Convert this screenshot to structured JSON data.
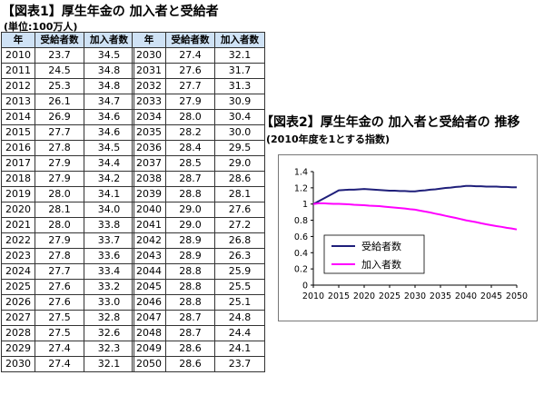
{
  "table_section": {
    "title": "【図表1】厚生年金の 加入者と受給者",
    "unit": "(単位:100万人)",
    "headers": [
      "年",
      "受給者数",
      "加入者数"
    ],
    "rows_left": [
      [
        "2010",
        "23.7",
        "34.5"
      ],
      [
        "2011",
        "24.5",
        "34.8"
      ],
      [
        "2012",
        "25.3",
        "34.8"
      ],
      [
        "2013",
        "26.1",
        "34.7"
      ],
      [
        "2014",
        "26.9",
        "34.6"
      ],
      [
        "2015",
        "27.7",
        "34.6"
      ],
      [
        "2016",
        "27.8",
        "34.5"
      ],
      [
        "2017",
        "27.9",
        "34.4"
      ],
      [
        "2018",
        "27.9",
        "34.2"
      ],
      [
        "2019",
        "28.0",
        "34.1"
      ],
      [
        "2020",
        "28.1",
        "34.0"
      ],
      [
        "2021",
        "28.0",
        "33.8"
      ],
      [
        "2022",
        "27.9",
        "33.7"
      ],
      [
        "2023",
        "27.8",
        "33.6"
      ],
      [
        "2024",
        "27.7",
        "33.4"
      ],
      [
        "2025",
        "27.6",
        "33.2"
      ],
      [
        "2026",
        "27.6",
        "33.0"
      ],
      [
        "2027",
        "27.5",
        "32.8"
      ],
      [
        "2028",
        "27.5",
        "32.6"
      ],
      [
        "2029",
        "27.4",
        "32.3"
      ],
      [
        "2030",
        "27.4",
        "32.1"
      ]
    ],
    "rows_right": [
      [
        "2030",
        "27.4",
        "32.1"
      ],
      [
        "2031",
        "27.6",
        "31.7"
      ],
      [
        "2032",
        "27.7",
        "31.3"
      ],
      [
        "2033",
        "27.9",
        "30.9"
      ],
      [
        "2034",
        "28.0",
        "30.4"
      ],
      [
        "2035",
        "28.2",
        "30.0"
      ],
      [
        "2036",
        "28.4",
        "29.5"
      ],
      [
        "2037",
        "28.5",
        "29.0"
      ],
      [
        "2038",
        "28.7",
        "28.6"
      ],
      [
        "2039",
        "28.8",
        "28.1"
      ],
      [
        "2040",
        "29.0",
        "27.6"
      ],
      [
        "2041",
        "29.0",
        "27.2"
      ],
      [
        "2042",
        "28.9",
        "26.8"
      ],
      [
        "2043",
        "28.9",
        "26.3"
      ],
      [
        "2044",
        "28.8",
        "25.9"
      ],
      [
        "2045",
        "28.8",
        "25.5"
      ],
      [
        "2046",
        "28.8",
        "25.1"
      ],
      [
        "2047",
        "28.7",
        "24.8"
      ],
      [
        "2048",
        "28.7",
        "24.4"
      ],
      [
        "2049",
        "28.6",
        "24.1"
      ],
      [
        "2050",
        "28.6",
        "23.7"
      ]
    ]
  },
  "chart_section": {
    "title": "【図表2】厚生年金の 加入者と受給者の 推移",
    "subtitle": "(2010年度を1とする指数)"
  },
  "colors": {
    "header_bg": "#cfe2f5",
    "recipients": "#1f1f7a",
    "enrollees": "#ff00ff"
  },
  "chart_data": {
    "type": "line",
    "x": [
      2010,
      2011,
      2012,
      2013,
      2014,
      2015,
      2016,
      2017,
      2018,
      2019,
      2020,
      2021,
      2022,
      2023,
      2024,
      2025,
      2026,
      2027,
      2028,
      2029,
      2030,
      2031,
      2032,
      2033,
      2034,
      2035,
      2036,
      2037,
      2038,
      2039,
      2040,
      2041,
      2042,
      2043,
      2044,
      2045,
      2046,
      2047,
      2048,
      2049,
      2050
    ],
    "xticks": [
      2010,
      2015,
      2020,
      2025,
      2030,
      2035,
      2040,
      2045,
      2050
    ],
    "ylim": [
      0,
      1.4
    ],
    "yticks": [
      "0",
      "0.2",
      "0.4",
      "0.6",
      "0.8",
      "1",
      "1.2",
      "1.4"
    ],
    "legend_position": "inside-left",
    "grid": false,
    "series": [
      {
        "name": "受給者数",
        "color": "#1f1f7a",
        "values": [
          23.7,
          24.5,
          25.3,
          26.1,
          26.9,
          27.7,
          27.8,
          27.9,
          27.9,
          28.0,
          28.1,
          28.0,
          27.9,
          27.8,
          27.7,
          27.6,
          27.6,
          27.5,
          27.5,
          27.4,
          27.4,
          27.6,
          27.7,
          27.9,
          28.0,
          28.2,
          28.4,
          28.5,
          28.7,
          28.8,
          29.0,
          29.0,
          28.9,
          28.9,
          28.8,
          28.8,
          28.8,
          28.7,
          28.7,
          28.6,
          28.6
        ]
      },
      {
        "name": "加入者数",
        "color": "#ff00ff",
        "values": [
          34.5,
          34.8,
          34.8,
          34.7,
          34.6,
          34.6,
          34.5,
          34.4,
          34.2,
          34.1,
          34.0,
          33.8,
          33.7,
          33.6,
          33.4,
          33.2,
          33.0,
          32.8,
          32.6,
          32.3,
          32.1,
          31.7,
          31.3,
          30.9,
          30.4,
          30.0,
          29.5,
          29.0,
          28.6,
          28.1,
          27.6,
          27.2,
          26.8,
          26.3,
          25.9,
          25.5,
          25.1,
          24.8,
          24.4,
          24.1,
          23.7
        ]
      }
    ]
  }
}
